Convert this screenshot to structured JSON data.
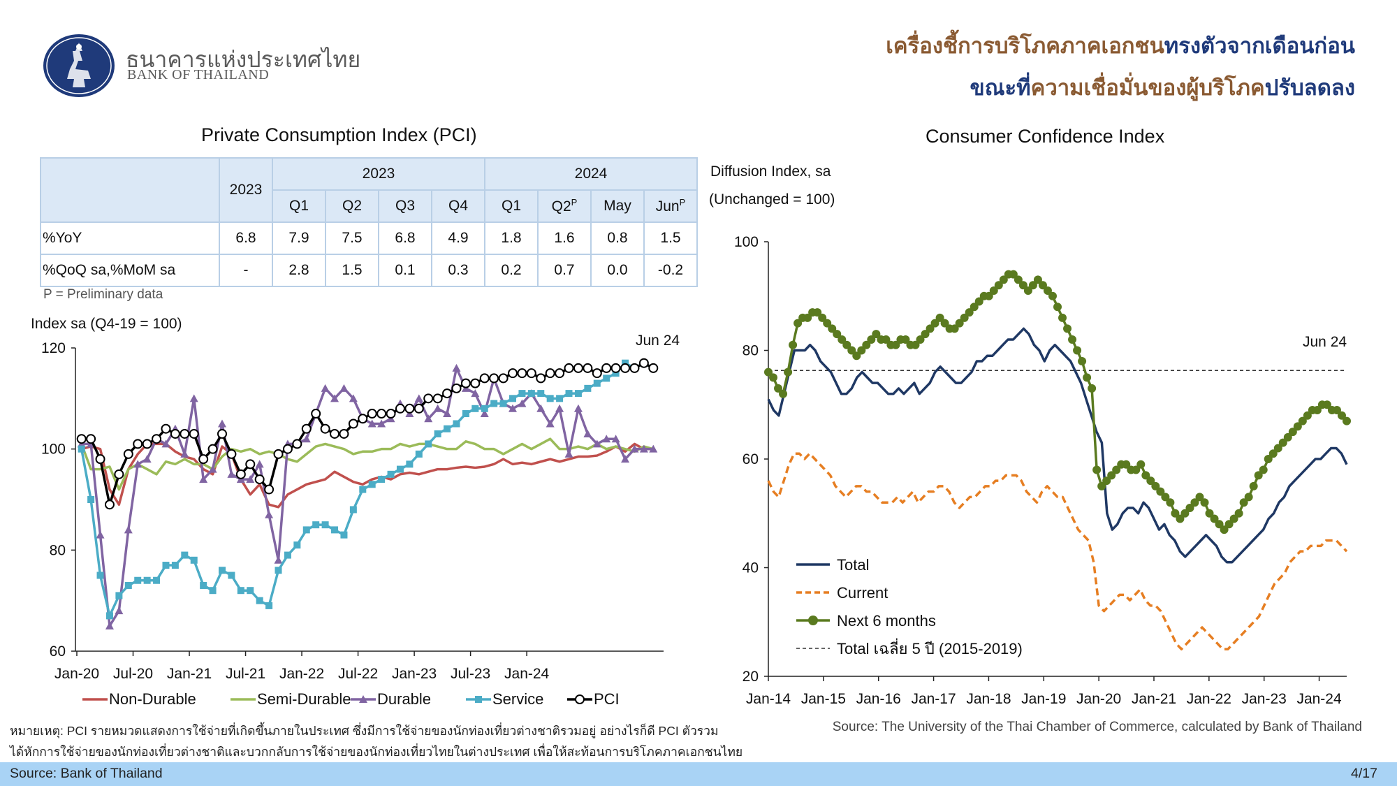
{
  "header": {
    "brand_th": "ธนาคารแห่งประเทศไทย",
    "brand_en": "BANK OF THAILAND",
    "headline_line1_part1": "เครื่องชี้การบริโภคภาคเอกชน",
    "headline_line1_part2": "ทรงตัวจากเดือนก่อน",
    "headline_line2_part1": "ขณะที่",
    "headline_line2_part2": "ความเชื่อมั่นของผู้บริโภค",
    "headline_line2_part3": "ปรับลดลง"
  },
  "pci_table": {
    "title": "Private Consumption Index (PCI)",
    "col_year": "2023",
    "group_2023": "2023",
    "group_2024": "2024",
    "sub_headers": [
      {
        "label": "Q1",
        "sup": ""
      },
      {
        "label": "Q2",
        "sup": ""
      },
      {
        "label": "Q3",
        "sup": ""
      },
      {
        "label": "Q4",
        "sup": ""
      },
      {
        "label": "Q1",
        "sup": ""
      },
      {
        "label": "Q2",
        "sup": "P"
      },
      {
        "label": "May",
        "sup": ""
      },
      {
        "label": "Jun",
        "sup": "P"
      }
    ],
    "rows": [
      {
        "label": "%YoY",
        "values": [
          "6.8",
          "7.9",
          "7.5",
          "6.8",
          "4.9",
          "1.8",
          "1.6",
          "0.8",
          "1.5"
        ]
      },
      {
        "label": "%QoQ sa,%MoM sa",
        "values": [
          "-",
          "2.8",
          "1.5",
          "0.1",
          "0.3",
          "0.2",
          "0.7",
          "0.0",
          "-0.2"
        ]
      }
    ],
    "note": "P = Preliminary data"
  },
  "chart_data": [
    {
      "type": "line",
      "ylabel": "Index sa (Q4-19 = 100)",
      "ylim": [
        60,
        120
      ],
      "yticks": [
        60,
        80,
        100,
        120
      ],
      "x_ticks": [
        "Jan-20",
        "Jul-20",
        "Jan-21",
        "Jul-21",
        "Jan-22",
        "Jul-22",
        "Jan-23",
        "Jul-23",
        "Jan-24"
      ],
      "x_range": [
        "Jan-20",
        "Jun-24"
      ],
      "annotation": "Jun 24",
      "legend_position": "bottom",
      "series": [
        {
          "name": "Non-Durable",
          "color": "#c0504d",
          "marker": "none",
          "values": [
            100,
            100.5,
            100,
            92,
            89,
            96,
            99,
            101,
            101,
            101,
            99.5,
            98.5,
            98,
            96,
            95,
            100.5,
            99,
            94,
            91,
            93,
            89,
            88.5,
            91,
            92,
            93,
            93.5,
            94,
            95.5,
            94.5,
            93.5,
            93,
            94,
            94.5,
            94,
            95,
            95.3,
            95,
            95.5,
            96,
            96,
            96.3,
            96.5,
            96.3,
            96.5,
            97,
            98,
            97,
            97.3,
            97,
            97.5,
            98,
            97.5,
            98,
            98.5,
            98.5,
            98.7,
            99.5,
            100.5,
            99.5,
            101,
            100,
            100
          ]
        },
        {
          "name": "Semi-Durable",
          "color": "#9bbb59",
          "marker": "none",
          "values": [
            101,
            96,
            96,
            96.5,
            92,
            96,
            97,
            96,
            95,
            97.5,
            97,
            98,
            97,
            97,
            96,
            98.5,
            100,
            99.5,
            100,
            99,
            99.5,
            99,
            98,
            97.5,
            99,
            100.5,
            101,
            100.5,
            100,
            99,
            99.5,
            99.5,
            100,
            100,
            101,
            100.5,
            101,
            101,
            100.5,
            100,
            100,
            101.5,
            101,
            100,
            100,
            99,
            100,
            101,
            100,
            101,
            102,
            100,
            100,
            100.5,
            100,
            101,
            100,
            100.5,
            100,
            99.5,
            100.5,
            100
          ]
        },
        {
          "name": "Durable",
          "color": "#8064a2",
          "marker": "triangle",
          "values": [
            101,
            101,
            83,
            65,
            68,
            84,
            97,
            98,
            102,
            101,
            104,
            99,
            110,
            94,
            96,
            105,
            95,
            94,
            94,
            97,
            87,
            78,
            101,
            101,
            102,
            107,
            112,
            110,
            112,
            110,
            106,
            105,
            105,
            106,
            109,
            107,
            110,
            106,
            108,
            107,
            116,
            112,
            111,
            107,
            114,
            109,
            108,
            109,
            111,
            108,
            105,
            108,
            99,
            108,
            103,
            101,
            102,
            102,
            98,
            100,
            100,
            100
          ]
        },
        {
          "name": "Service",
          "color": "#4bacc6",
          "marker": "square",
          "values": [
            100,
            90,
            75,
            67,
            71,
            73,
            74,
            74,
            74,
            77,
            77,
            79,
            78,
            73,
            72,
            76,
            75,
            72,
            72,
            70,
            69,
            76,
            79,
            81,
            84,
            85,
            85,
            84,
            83,
            88,
            92,
            93,
            94,
            95,
            96,
            97,
            99,
            101,
            103,
            104,
            105,
            107,
            108,
            108,
            109,
            109,
            110,
            111,
            111,
            111,
            110,
            110,
            111,
            111,
            112,
            113,
            114,
            115,
            117,
            116,
            117,
            116
          ]
        },
        {
          "name": "PCI",
          "color": "#000000",
          "marker": "circle",
          "values": [
            102,
            102,
            98,
            89,
            95,
            99,
            101,
            101,
            102,
            104,
            103,
            103,
            103,
            98,
            100,
            103,
            99,
            95,
            97,
            94,
            92,
            99,
            100,
            101,
            104,
            107,
            104,
            103,
            103,
            105,
            106,
            107,
            107,
            107,
            108,
            108,
            108,
            110,
            110,
            111,
            112,
            113,
            113,
            114,
            114,
            114,
            115,
            115,
            115,
            114,
            115,
            115,
            116,
            116,
            116,
            115,
            116,
            116,
            116,
            116,
            117,
            116
          ]
        }
      ]
    },
    {
      "type": "line",
      "title": "Consumer Confidence Index",
      "ylabel_line1": "Diffusion Index, sa",
      "ylabel_line2": "(Unchanged = 100)",
      "ylim": [
        20,
        100
      ],
      "yticks": [
        20,
        40,
        60,
        80,
        100
      ],
      "x_ticks": [
        "Jan-14",
        "Jan-15",
        "Jan-16",
        "Jan-17",
        "Jan-18",
        "Jan-19",
        "Jan-20",
        "Jan-21",
        "Jan-22",
        "Jan-23",
        "Jan-24"
      ],
      "x_range": [
        "Jan-14",
        "Jun-24"
      ],
      "annotation": "Jun 24",
      "legend_position": "bottom-left",
      "reference_line": {
        "name": "Total เฉลี่ย 5 ปี (2015-2019)",
        "value": 76.3,
        "color": "#333333"
      },
      "series": [
        {
          "name": "Total",
          "color": "#1f3864",
          "dash": "none",
          "marker": "none",
          "values": [
            71,
            69,
            68,
            72,
            76,
            80,
            80,
            80,
            81,
            80,
            78,
            77,
            76,
            74,
            72,
            72,
            73,
            75,
            76,
            75,
            74,
            74,
            73,
            72,
            72,
            73,
            72,
            73,
            74,
            72,
            73,
            74,
            76,
            77,
            76,
            75,
            74,
            74,
            75,
            76,
            78,
            78,
            79,
            79,
            80,
            81,
            82,
            82,
            83,
            84,
            83,
            81,
            80,
            78,
            80,
            81,
            80,
            79,
            78,
            76,
            74,
            71,
            68,
            65,
            63,
            50,
            47,
            48,
            50,
            51,
            51,
            50,
            52,
            51,
            49,
            47,
            48,
            46,
            45,
            43,
            42,
            43,
            44,
            45,
            46,
            45,
            44,
            42,
            41,
            41,
            42,
            43,
            44,
            45,
            46,
            47,
            49,
            50,
            52,
            53,
            55,
            56,
            57,
            58,
            59,
            60,
            60,
            61,
            62,
            62,
            61,
            59
          ]
        },
        {
          "name": "Current",
          "color": "#e67e22",
          "dash": "dashed",
          "marker": "none",
          "values": [
            56,
            54,
            53,
            56,
            59,
            61,
            61,
            60,
            61,
            60,
            59,
            58,
            57,
            55,
            54,
            53,
            54,
            55,
            55,
            54,
            54,
            53,
            52,
            52,
            52,
            53,
            52,
            53,
            54,
            52,
            53,
            54,
            54,
            55,
            55,
            54,
            52,
            51,
            52,
            53,
            53,
            54,
            55,
            55,
            56,
            56,
            57,
            57,
            57,
            56,
            54,
            53,
            52,
            54,
            55,
            54,
            53,
            53,
            51,
            49,
            47,
            46,
            45,
            41,
            33,
            32,
            33,
            34,
            35,
            35,
            34,
            35,
            36,
            34,
            33,
            33,
            32,
            30,
            28,
            26,
            25,
            26,
            27,
            28,
            29,
            28,
            27,
            26,
            25,
            25,
            26,
            27,
            28,
            29,
            30,
            31,
            33,
            35,
            37,
            38,
            39,
            41,
            42,
            43,
            43,
            44,
            44,
            44,
            45,
            45,
            45,
            44,
            43
          ]
        },
        {
          "name": "Next 6 months",
          "color": "#5a7a1f",
          "dash": "none",
          "marker": "circle",
          "values": [
            76,
            75,
            73,
            72,
            76,
            81,
            85,
            86,
            86,
            87,
            87,
            86,
            85,
            84,
            83,
            82,
            81,
            80,
            79,
            80,
            81,
            82,
            83,
            82,
            82,
            81,
            81,
            82,
            82,
            81,
            81,
            82,
            83,
            84,
            85,
            86,
            85,
            84,
            84,
            85,
            86,
            87,
            88,
            89,
            90,
            90,
            91,
            92,
            93,
            94,
            94,
            93,
            92,
            91,
            92,
            93,
            92,
            91,
            90,
            88,
            86,
            84,
            82,
            80,
            78,
            75,
            73,
            58,
            55,
            56,
            57,
            58,
            59,
            59,
            58,
            58,
            59,
            57,
            56,
            55,
            54,
            53,
            52,
            50,
            49,
            50,
            51,
            52,
            53,
            52,
            50,
            49,
            48,
            47,
            48,
            49,
            50,
            52,
            53,
            55,
            57,
            58,
            60,
            61,
            62,
            63,
            64,
            65,
            66,
            67,
            68,
            69,
            69,
            70,
            70,
            69,
            69,
            68,
            67
          ]
        }
      ]
    }
  ],
  "footnote": {
    "line1": "หมายเหตุ: PCI รายหมวดแสดงการใช้จ่ายที่เกิดขึ้นภายในประเทศ ซึ่งมีการใช้จ่ายของนักท่องเที่ยวต่างชาติรวมอยู่ อย่างไรก็ดี PCI ตัวรวม",
    "line2": "ได้หักการใช้จ่ายของนักท่องเที่ยวต่างชาติและบวกกลับการใช้จ่ายของนักท่องเที่ยวไทยในต่างประเทศ เพื่อให้สะท้อนการบริโภคภาคเอกชนไทย"
  },
  "source_right": "Source:  The University of the Thai Chamber of Commerce, calculated by Bank of Thailand",
  "footer": {
    "source": "Source: Bank of Thailand",
    "page": "4/17"
  }
}
